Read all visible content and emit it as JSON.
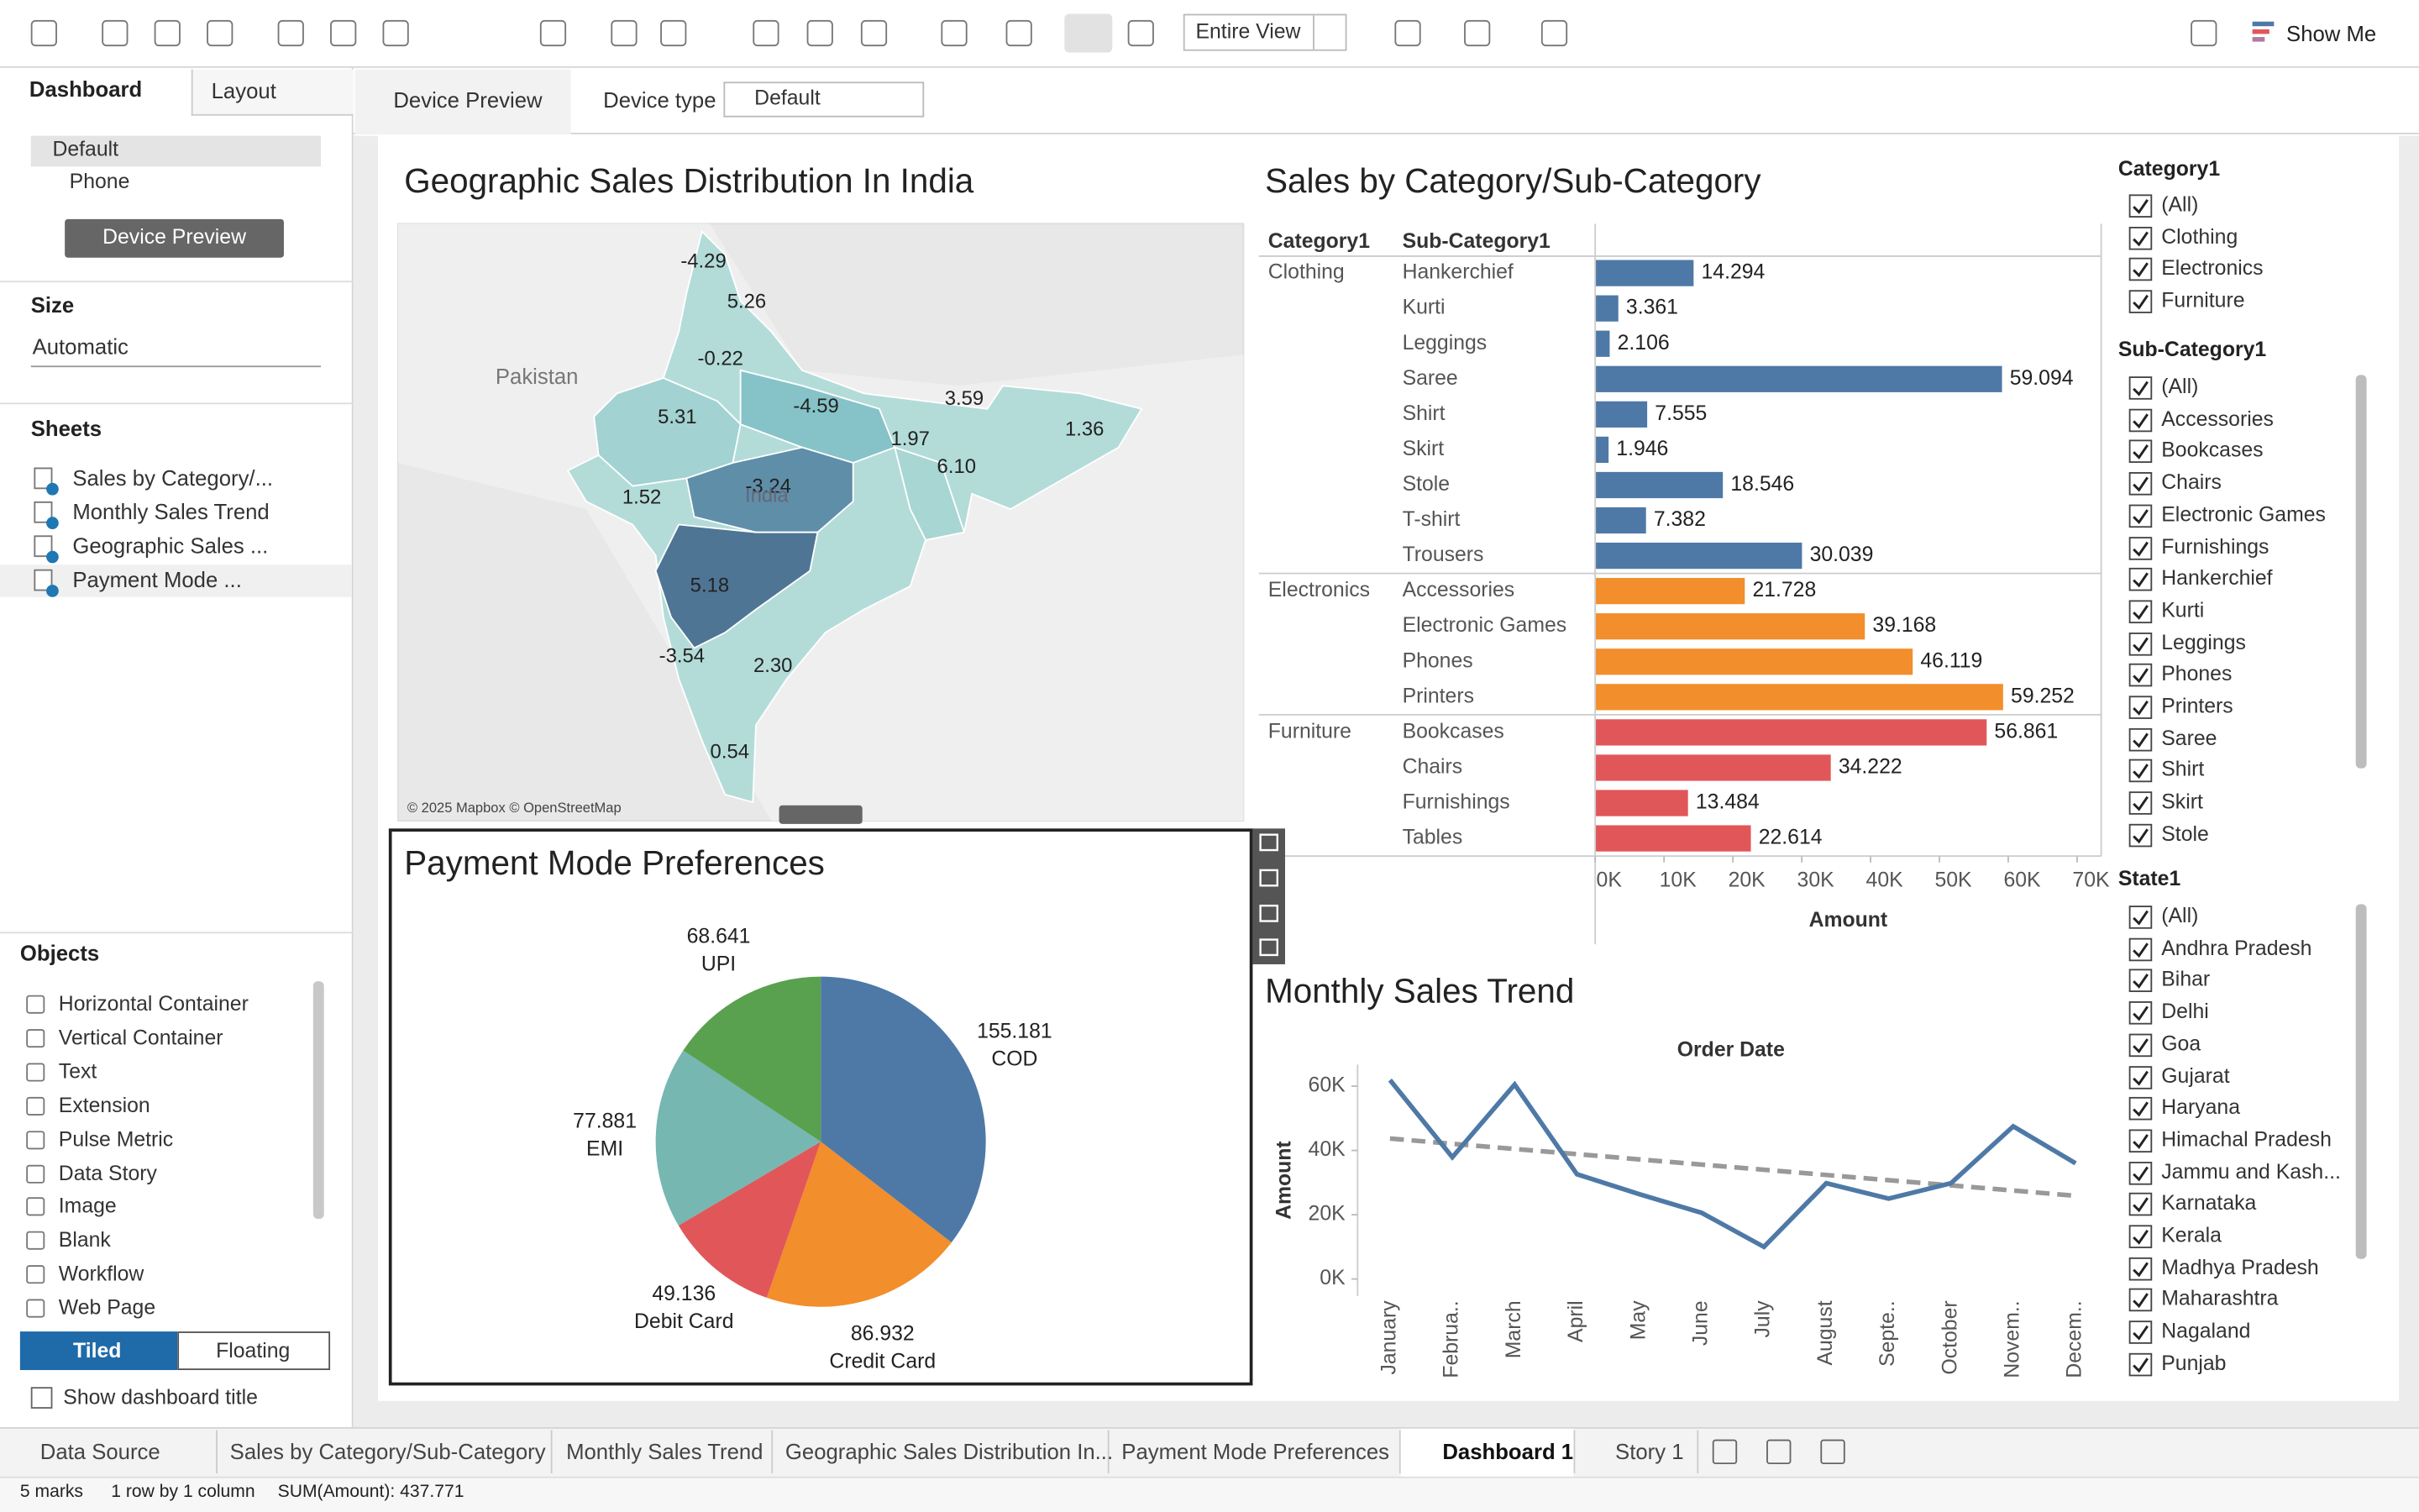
{
  "toolbar": {
    "view_mode": "Entire View",
    "show_me": "Show Me"
  },
  "side": {
    "tabs": [
      "Dashboard",
      "Layout"
    ],
    "devices": [
      "Default",
      "Phone"
    ],
    "device_preview": "Device Preview",
    "size_title": "Size",
    "size_value": "Automatic",
    "sheets_title": "Sheets",
    "sheets": [
      "Sales by Category/...",
      "Monthly Sales Trend",
      "Geographic Sales ...",
      "Payment Mode ..."
    ],
    "objects_title": "Objects",
    "objects": [
      "Horizontal Container",
      "Vertical Container",
      "Text",
      "Extension",
      "Pulse Metric",
      "Data Story",
      "Image",
      "Blank",
      "Workflow",
      "Web Page"
    ],
    "modes": [
      "Tiled",
      "Floating"
    ],
    "show_title": "Show dashboard title"
  },
  "device_bar": {
    "preview": "Device Preview",
    "type_label": "Device type",
    "type_value": "Default"
  },
  "map": {
    "title": "Geographic Sales Distribution In India",
    "places": [
      "Pakistan",
      "India"
    ],
    "region_labels": [
      "-4.29",
      "5.26",
      "-0.22",
      "5.31",
      "-4.59",
      "3.59",
      "1.97",
      "1.36",
      "6.10",
      "-3.24",
      "1.52",
      "5.18",
      "-3.54",
      "2.30",
      "0.54"
    ],
    "attribution": "© 2025 Mapbox © OpenStreetMap"
  },
  "chart_data": [
    {
      "type": "bar",
      "orientation": "horizontal",
      "title": "Sales by Category/Sub-Category",
      "column_headers": [
        "Category1",
        "Sub-Category1"
      ],
      "x_label": "Amount",
      "xlim": [
        0,
        73500
      ],
      "xticks": [
        {
          "value": 0,
          "label": "0K"
        },
        {
          "value": 10000,
          "label": "10K"
        },
        {
          "value": 20000,
          "label": "20K"
        },
        {
          "value": 30000,
          "label": "30K"
        },
        {
          "value": 40000,
          "label": "40K"
        },
        {
          "value": 50000,
          "label": "50K"
        },
        {
          "value": 60000,
          "label": "60K"
        },
        {
          "value": 70000,
          "label": "70K"
        }
      ],
      "groups": [
        {
          "name": "Clothing",
          "color": "#4e79a7",
          "categories": [
            "Hankerchief",
            "Kurti",
            "Leggings",
            "Saree",
            "Shirt",
            "Skirt",
            "Stole",
            "T-shirt",
            "Trousers"
          ],
          "values": [
            14294,
            3361,
            2106,
            59094,
            7555,
            1946,
            18546,
            7382,
            30039
          ],
          "value_labels": [
            "14.294",
            "3.361",
            "2.106",
            "59.094",
            "7.555",
            "1.946",
            "18.546",
            "7.382",
            "30.039"
          ]
        },
        {
          "name": "Electronics",
          "color": "#f28e2b",
          "categories": [
            "Accessories",
            "Electronic Games",
            "Phones",
            "Printers"
          ],
          "values": [
            21728,
            39168,
            46119,
            59252
          ],
          "value_labels": [
            "21.728",
            "39.168",
            "46.119",
            "59.252"
          ]
        },
        {
          "name": "Furniture",
          "color": "#e15759",
          "categories": [
            "Bookcases",
            "Chairs",
            "Furnishings",
            "Tables"
          ],
          "values": [
            56861,
            34222,
            13484,
            22614
          ],
          "value_labels": [
            "56.861",
            "34.222",
            "13.484",
            "22.614"
          ]
        }
      ]
    },
    {
      "type": "pie",
      "title": "Payment Mode Preferences",
      "categories": [
        "COD",
        "Credit Card",
        "Debit Card",
        "EMI",
        "UPI"
      ],
      "values": [
        155.181,
        86.932,
        49.136,
        77.881,
        68.641
      ],
      "colors": [
        "#4e79a7",
        "#f28e2b",
        "#e15759",
        "#76b7b2",
        "#59a14f"
      ]
    },
    {
      "type": "line",
      "title": "Monthly Sales Trend",
      "x_label": "Order Date",
      "y_label": "Amount",
      "categories": [
        "January",
        "Februa..",
        "March",
        "April",
        "May",
        "June",
        "July",
        "August",
        "Septe..",
        "October",
        "Novem..",
        "Decem.."
      ],
      "values": [
        61900,
        37900,
        60500,
        32600,
        26400,
        20600,
        10000,
        29800,
        25000,
        29800,
        47500,
        36000
      ],
      "color": "#4e79a7",
      "trend_line": {
        "color": "#999999",
        "values": [
          43700,
          25900
        ]
      },
      "ylim": [
        -5000,
        66000
      ],
      "yticks": [
        {
          "value": 0,
          "label": "0K"
        },
        {
          "value": 20000,
          "label": "20K"
        },
        {
          "value": 40000,
          "label": "40K"
        },
        {
          "value": 60000,
          "label": "60K"
        }
      ]
    }
  ],
  "filters": [
    {
      "title": "Category1",
      "items": [
        "(All)",
        "Clothing",
        "Electronics",
        "Furniture"
      ]
    },
    {
      "title": "Sub-Category1",
      "items": [
        "(All)",
        "Accessories",
        "Bookcases",
        "Chairs",
        "Electronic Games",
        "Furnishings",
        "Hankerchief",
        "Kurti",
        "Leggings",
        "Phones",
        "Printers",
        "Saree",
        "Shirt",
        "Skirt",
        "Stole"
      ]
    },
    {
      "title": "State1",
      "items": [
        "(All)",
        "Andhra Pradesh",
        "Bihar",
        "Delhi",
        "Goa",
        "Gujarat",
        "Haryana",
        "Himachal Pradesh",
        "Jammu and Kash...",
        "Karnataka",
        "Kerala",
        "Madhya Pradesh",
        "Maharashtra",
        "Nagaland",
        "Punjab"
      ]
    }
  ],
  "tabs": [
    "Data Source",
    "Sales by Category/Sub-Category",
    "Monthly Sales Trend",
    "Geographic Sales Distribution In...",
    "Payment Mode Preferences",
    "Dashboard 1",
    "Story 1"
  ],
  "status": [
    "5 marks",
    "1 row by 1 column",
    "SUM(Amount): 437.771"
  ]
}
